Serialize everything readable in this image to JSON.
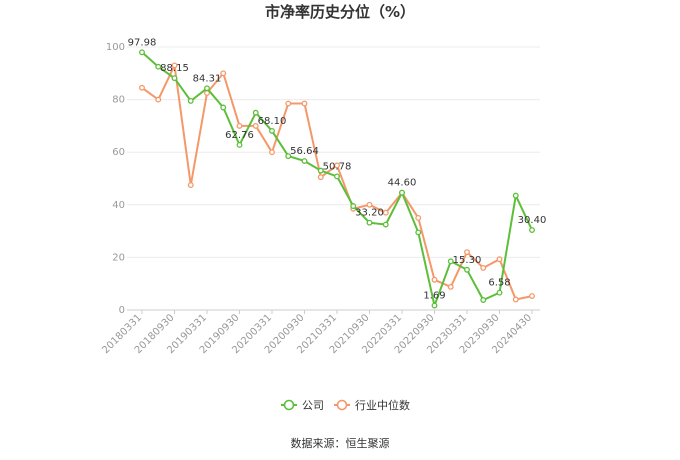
{
  "chart_data": {
    "type": "line",
    "title": "市净率历史分位（%）",
    "xlabel": "",
    "ylabel": "",
    "ylim": [
      0,
      100
    ],
    "yticks": [
      0,
      20,
      40,
      60,
      80,
      100
    ],
    "grid": true,
    "legend_position": "bottom",
    "xtick_labels": [
      "20180331",
      "20180930",
      "20190331",
      "20190930",
      "20200331",
      "20200930",
      "20210331",
      "20210930",
      "20220331",
      "20220930",
      "20230331",
      "20230930",
      "20240430"
    ],
    "x_positions_of_ticks": [
      0,
      2,
      4,
      6,
      8,
      10,
      12,
      14,
      16,
      18,
      20,
      22,
      24
    ],
    "series": [
      {
        "name": "公司",
        "color": "#5cbf3a",
        "values": [
          97.98,
          92.5,
          88.15,
          79.5,
          84.31,
          77.0,
          62.76,
          75.0,
          68.1,
          58.5,
          56.64,
          53.0,
          50.78,
          39.5,
          33.2,
          32.5,
          44.6,
          29.5,
          1.69,
          18.5,
          15.3,
          3.8,
          6.58,
          43.5,
          30.4
        ]
      },
      {
        "name": "行业中位数",
        "color": "#f59869",
        "values": [
          84.5,
          80.0,
          93.0,
          47.5,
          82.5,
          90.0,
          70.0,
          70.0,
          60.0,
          78.5,
          78.5,
          50.5,
          55.0,
          38.5,
          40.0,
          37.0,
          44.6,
          35.0,
          11.5,
          8.8,
          22.0,
          16.0,
          19.3,
          4.0,
          5.3
        ]
      }
    ],
    "data_labels": [
      {
        "index": 0,
        "text": "97.98"
      },
      {
        "index": 2,
        "text": "88.15"
      },
      {
        "index": 4,
        "text": "84.31"
      },
      {
        "index": 6,
        "text": "62.76"
      },
      {
        "index": 8,
        "text": "68.10"
      },
      {
        "index": 10,
        "text": "56.64"
      },
      {
        "index": 12,
        "text": "50.78"
      },
      {
        "index": 14,
        "text": "33.20"
      },
      {
        "index": 16,
        "text": "44.60"
      },
      {
        "index": 18,
        "text": "1.69"
      },
      {
        "index": 20,
        "text": "15.30"
      },
      {
        "index": 22,
        "text": "6.58"
      },
      {
        "index": 24,
        "text": "30.40"
      }
    ]
  },
  "source_label": "数据来源：恒生聚源"
}
